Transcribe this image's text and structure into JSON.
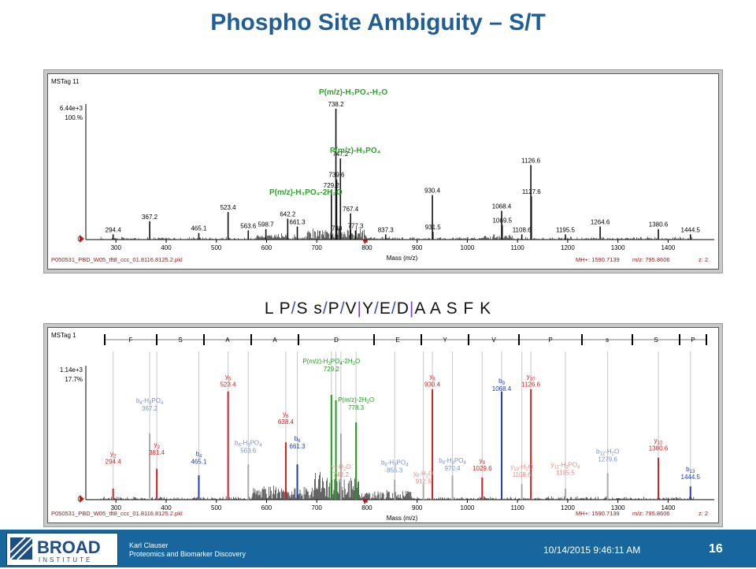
{
  "slide": {
    "title": "Phospho Site Ambiguity – S/T",
    "sequence": [
      {
        "t": "L P",
        "c": "plain"
      },
      {
        "t": "/",
        "c": "cleave"
      },
      {
        "t": "S s",
        "c": "plain"
      },
      {
        "t": "/",
        "c": "cleave"
      },
      {
        "t": "P",
        "c": "plain"
      },
      {
        "t": "/",
        "c": "cleave"
      },
      {
        "t": "V",
        "c": "plain"
      },
      {
        "t": "|",
        "c": "mark"
      },
      {
        "t": "Y",
        "c": "plain"
      },
      {
        "t": "/",
        "c": "cleave"
      },
      {
        "t": "E",
        "c": "plain"
      },
      {
        "t": "/",
        "c": "cleave"
      },
      {
        "t": "D",
        "c": "plain"
      },
      {
        "t": "|",
        "c": "mark"
      },
      {
        "t": "A A S F K",
        "c": "plain"
      }
    ]
  },
  "footer": {
    "logo_word": "BROAD",
    "logo_sub": "INSTITUTE",
    "author": "Karl Clauser",
    "dept": "Proteomics and Biomarker Discovery",
    "date": "10/14/2015 9:46:11 AM",
    "page": "16"
  },
  "chart_data": [
    {
      "type": "bar",
      "subtype": "mass-spectrum",
      "tag": "MSTag 11",
      "ylabel_max": "6.44e+3",
      "ylabel_pct": "100.%",
      "xlabel": "Mass (m/z)",
      "xlim": [
        240,
        1470
      ],
      "xticks": [
        300,
        400,
        500,
        600,
        700,
        800,
        900,
        1000,
        1100,
        1200,
        1300,
        1400
      ],
      "file": "P050531_PBD_W05_tft8_ccc_01.8116.8125.2.pkl",
      "mh": "MH+: 1590.7139",
      "mz": "m/z: 795.8606",
      "z": "z: 2",
      "precursor_marker": 795.9,
      "peaks": [
        {
          "x": 294.4,
          "y": 4,
          "label": "294.4"
        },
        {
          "x": 367.2,
          "y": 14,
          "label": "367.2"
        },
        {
          "x": 465.1,
          "y": 5,
          "label": "465.1"
        },
        {
          "x": 523.4,
          "y": 21,
          "label": "523.4"
        },
        {
          "x": 563.6,
          "y": 7,
          "label": "563.6"
        },
        {
          "x": 598.7,
          "y": 8,
          "label": "598.7"
        },
        {
          "x": 642.2,
          "y": 16,
          "label": "642.2"
        },
        {
          "x": 661.3,
          "y": 10,
          "label": "661.3"
        },
        {
          "x": 729.2,
          "y": 38,
          "label": "729.2"
        },
        {
          "x": 738.2,
          "y": 100,
          "label": "738.2"
        },
        {
          "x": 739.6,
          "y": 46,
          "label": "739.6"
        },
        {
          "x": 740,
          "y": 5,
          "label": "740"
        },
        {
          "x": 747.2,
          "y": 62,
          "label": "747.2"
        },
        {
          "x": 767.4,
          "y": 20,
          "label": "767.4"
        },
        {
          "x": 777.3,
          "y": 7,
          "label": "777.3"
        },
        {
          "x": 837.3,
          "y": 4,
          "label": "837.3"
        },
        {
          "x": 930.4,
          "y": 34,
          "label": "930.4"
        },
        {
          "x": 931.5,
          "y": 6,
          "label": "931.5"
        },
        {
          "x": 1068.4,
          "y": 22,
          "label": "1068.4"
        },
        {
          "x": 1069.5,
          "y": 11,
          "label": "1069.5"
        },
        {
          "x": 1108.6,
          "y": 4,
          "label": "1108.6"
        },
        {
          "x": 1126.6,
          "y": 57,
          "label": "1126.6"
        },
        {
          "x": 1127.6,
          "y": 33,
          "label": "1127.6"
        },
        {
          "x": 1195.5,
          "y": 4,
          "label": "1195.5"
        },
        {
          "x": 1264.6,
          "y": 10,
          "label": "1264.6"
        },
        {
          "x": 1380.6,
          "y": 8,
          "label": "1380.6"
        },
        {
          "x": 1444.5,
          "y": 4,
          "label": "1444.5"
        }
      ],
      "annotations": [
        {
          "text": "P(m/z)-H₃PO₄-H₂O",
          "x": 738.2
        },
        {
          "text": "P(m/z)-H₃PO₄",
          "x": 747.2
        },
        {
          "text": "P(m/z)-H₃PO₄-2H₂O",
          "x": 729.2
        }
      ],
      "colors": {
        "peak": "#111111",
        "annotation": "#2aa52a",
        "precursor": "#d01010"
      }
    },
    {
      "type": "bar",
      "subtype": "annotated-mass-spectrum",
      "tag": "MSTag 1",
      "ylabel_max": "1.14e+3",
      "ylabel_pct": "17.7%",
      "xlabel": "Mass (m/z)",
      "xlim": [
        240,
        1470
      ],
      "xticks": [
        300,
        400,
        500,
        600,
        700,
        800,
        900,
        1000,
        1100,
        1200,
        1300,
        1400
      ],
      "file": "P050531_PBD_W05_tft8_ccc_01.8116.8125.2.pkl",
      "mh": "MH+: 1590.7139",
      "mz": "m/z: 795.8606",
      "z": "z: 2",
      "precursor_marker": 795.9,
      "sequence_ruler": [
        "F",
        "S",
        "A",
        "A",
        "D",
        "E",
        "Y",
        "V",
        "P",
        "s",
        "S",
        "P"
      ],
      "peaks": [
        {
          "x": 294.4,
          "y": 10,
          "color": "red"
        },
        {
          "x": 367.2,
          "y": 60,
          "color": "gray"
        },
        {
          "x": 381.4,
          "y": 28,
          "color": "red"
        },
        {
          "x": 465.1,
          "y": 22,
          "color": "blue"
        },
        {
          "x": 523.4,
          "y": 98,
          "color": "red"
        },
        {
          "x": 563.6,
          "y": 32,
          "color": "gray"
        },
        {
          "x": 638.4,
          "y": 52,
          "color": "red"
        },
        {
          "x": 661.3,
          "y": 32,
          "color": "blue"
        },
        {
          "x": 729.2,
          "y": 95,
          "color": "green"
        },
        {
          "x": 738.2,
          "y": 90,
          "color": "green"
        },
        {
          "x": 748.2,
          "y": 60,
          "color": "gray"
        },
        {
          "x": 778.3,
          "y": 70,
          "color": "green"
        },
        {
          "x": 855.3,
          "y": 18,
          "color": "gray"
        },
        {
          "x": 912.5,
          "y": 14,
          "color": "gray"
        },
        {
          "x": 930.4,
          "y": 100,
          "color": "red"
        },
        {
          "x": 970.4,
          "y": 22,
          "color": "gray"
        },
        {
          "x": 1029.6,
          "y": 20,
          "color": "red"
        },
        {
          "x": 1068.4,
          "y": 98,
          "color": "blue"
        },
        {
          "x": 1108.6,
          "y": 14,
          "color": "gray"
        },
        {
          "x": 1126.6,
          "y": 100,
          "color": "red"
        },
        {
          "x": 1195.5,
          "y": 10,
          "color": "gray"
        },
        {
          "x": 1279.6,
          "y": 24,
          "color": "gray"
        },
        {
          "x": 1380.6,
          "y": 38,
          "color": "red"
        },
        {
          "x": 1444.5,
          "y": 12,
          "color": "blue"
        }
      ],
      "labels": [
        {
          "x": 294.4,
          "ion": "y",
          "sub": "2",
          "mz": "294.4",
          "color": "red",
          "level": 34
        },
        {
          "x": 367.2,
          "ion": "b",
          "sub": "4",
          "extra": "-H",
          "extra_sub": "3",
          "extra2": "PO",
          "extra2_sub": "4",
          "mz": "367.2",
          "color": "lightblue",
          "level": 82
        },
        {
          "x": 381.4,
          "ion": "y",
          "sub": "3",
          "mz": "381.4",
          "color": "red",
          "level": 42
        },
        {
          "x": 465.1,
          "ion": "b",
          "sub": "4",
          "mz": "465.1",
          "color": "blue",
          "level": 34
        },
        {
          "x": 523.4,
          "ion": "y",
          "sub": "5",
          "mz": "523.4",
          "color": "red",
          "level": 104
        },
        {
          "x": 563.6,
          "ion": "b",
          "sub": "6",
          "extra": "-H",
          "extra_sub": "3",
          "extra2": "PO",
          "extra2_sub": "4",
          "mz": "563.6",
          "color": "lightblue",
          "level": 44
        },
        {
          "x": 638.4,
          "ion": "y",
          "sub": "6",
          "mz": "638.4",
          "color": "red",
          "level": 70
        },
        {
          "x": 661.3,
          "ion": "b",
          "sub": "6",
          "mz": "661.3",
          "color": "blue",
          "level": 48
        },
        {
          "x": 729.2,
          "ion": "P(m/z)-H",
          "sub": "3",
          "extra": "PO",
          "extra_sub": "4",
          "extra2": "-2H",
          "extra2_sub": "2",
          "tail": "O",
          "mz": "729.2",
          "color": "green",
          "level": 118
        },
        {
          "x": 748.2,
          "ion": "y",
          "sub": "7",
          "extra": "-H",
          "extra_sub": "2",
          "tail": "O",
          "mz": "748.2",
          "color": "salmon",
          "level": 22
        },
        {
          "x": 778.3,
          "ion": "P(m/z)-2H",
          "sub": "2",
          "tail": "O",
          "mz": "778.3",
          "color": "green",
          "level": 83
        },
        {
          "x": 855.3,
          "ion": "b",
          "sub": "8",
          "extra": "-H",
          "extra_sub": "3",
          "extra2": "PO",
          "extra2_sub": "4",
          "mz": "855.3",
          "color": "lightblue",
          "level": 26
        },
        {
          "x": 912.5,
          "ion": "y",
          "sub": "8",
          "extra": "-H",
          "extra_sub": "2",
          "tail": "O",
          "mz": "912.5",
          "color": "salmon",
          "level": 16
        },
        {
          "x": 930.4,
          "ion": "y",
          "sub": "8",
          "mz": "930.4",
          "color": "red",
          "level": 104
        },
        {
          "x": 970.4,
          "ion": "b",
          "sub": "9",
          "extra": "-H",
          "extra_sub": "3",
          "extra2": "PO",
          "extra2_sub": "4",
          "mz": "970.4",
          "color": "lightblue",
          "level": 28
        },
        {
          "x": 1029.6,
          "ion": "y",
          "sub": "9",
          "mz": "1029.6",
          "color": "red",
          "level": 28
        },
        {
          "x": 1068.4,
          "ion": "b",
          "sub": "9",
          "mz": "1068.4",
          "color": "blue",
          "level": 100
        },
        {
          "x": 1108.6,
          "ion": "y",
          "sub": "10",
          "extra": "-H",
          "extra_sub": "2",
          "tail": "O",
          "mz": "1108.6",
          "color": "salmon",
          "level": 22
        },
        {
          "x": 1126.6,
          "ion": "y",
          "sub": "10",
          "mz": "1126.6",
          "color": "red",
          "level": 104
        },
        {
          "x": 1195.5,
          "ion": "y",
          "sub": "11",
          "extra": "-H",
          "extra_sub": "3",
          "extra2": "PO",
          "extra2_sub": "4",
          "mz": "1195.5",
          "color": "salmon",
          "level": 24
        },
        {
          "x": 1279.6,
          "ion": "b",
          "sub": "12",
          "extra": "-H",
          "extra_sub": "2",
          "tail": "O",
          "mz": "1279.6",
          "color": "lightblue",
          "level": 36
        },
        {
          "x": 1380.6,
          "ion": "y",
          "sub": "12",
          "mz": "1380.6",
          "color": "red",
          "level": 46
        },
        {
          "x": 1444.5,
          "ion": "b",
          "sub": "13",
          "mz": "1444.5",
          "color": "blue",
          "level": 20
        }
      ],
      "colors": {
        "red": "#d81e1e",
        "blue": "#1f3fb0",
        "lightblue": "#7b8fcf",
        "gray": "#a9a9a9",
        "green": "#16a016",
        "salmon": "#e58a84",
        "peak": "#111111",
        "precursor": "#d01010"
      }
    }
  ]
}
